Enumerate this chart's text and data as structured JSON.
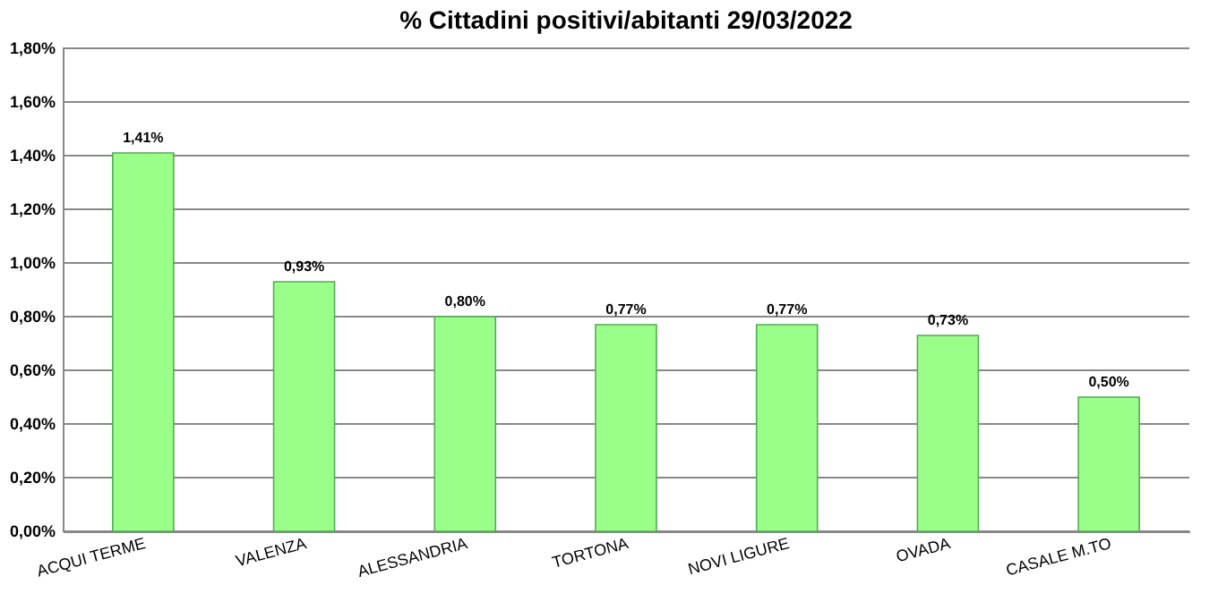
{
  "chart_data": {
    "type": "bar",
    "title": "% Cittadini positivi/abitanti 29/03/2022",
    "categories": [
      "ACQUI TERME",
      "VALENZA",
      "ALESSANDRIA",
      "TORTONA",
      "NOVI LIGURE",
      "OVADA",
      "CASALE M.TO"
    ],
    "values": [
      1.41,
      0.93,
      0.8,
      0.77,
      0.77,
      0.73,
      0.5
    ],
    "value_labels": [
      "1,41%",
      "0,93%",
      "0,80%",
      "0,77%",
      "0,77%",
      "0,73%",
      "0,50%"
    ],
    "color": "#99ff88",
    "ylim": [
      0,
      1.8
    ],
    "yticks": [
      {
        "value": 0,
        "label": "0,00%"
      },
      {
        "value": 0.2,
        "label": "0,20%"
      },
      {
        "value": 0.4,
        "label": "0,40%"
      },
      {
        "value": 0.6,
        "label": "0,60%"
      },
      {
        "value": 0.8,
        "label": "0,80%"
      },
      {
        "value": 1.0,
        "label": "1,00%"
      },
      {
        "value": 1.2,
        "label": "1,20%"
      },
      {
        "value": 1.4,
        "label": "1,40%"
      },
      {
        "value": 1.6,
        "label": "1,60%"
      },
      {
        "value": 1.8,
        "label": "1,80%"
      }
    ],
    "grid": "y"
  }
}
